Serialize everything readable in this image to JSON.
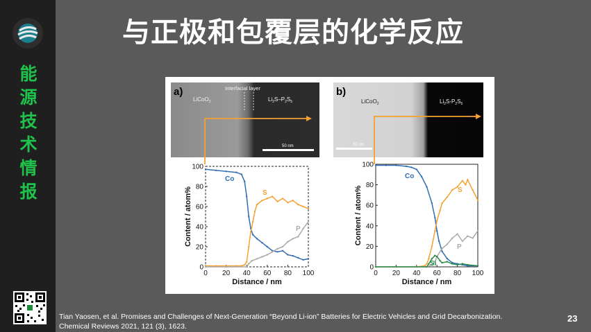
{
  "slide": {
    "title": "与正极和包覆层的化学反应",
    "sidebar_text": [
      "能",
      "源",
      "技",
      "术",
      "情",
      "报"
    ],
    "citation_line1": "Tian Yaosen, et al. Promises and Challenges of Next-Generation “Beyond Li-ion” Batteries for Electric Vehicles and Grid Decarbonization.",
    "citation_line2": "Chemical Reviews 2021, 121 (3), 1623.",
    "page_number": "23"
  },
  "colors": {
    "sidebar_text": "#1fc24a",
    "co": "#2f6db5",
    "s": "#f5a031",
    "p": "#a9a9a9",
    "si": "#2a8a4a",
    "arrow": "#f5a031"
  },
  "panels": [
    {
      "label": "a)",
      "left_phase": "LiCoO",
      "left_sub": "2",
      "right_phase_parts": [
        "Li",
        "2",
        "S–P",
        "2",
        "S",
        "5"
      ],
      "interfacial": "Interfacial layer",
      "scale": "50 nm"
    },
    {
      "label": "b)",
      "left_phase": "LiCoO",
      "left_sub": "2",
      "right_phase_parts": [
        "Li",
        "2",
        "S-P",
        "2",
        "S",
        "5"
      ],
      "scale": "50 nm"
    }
  ],
  "chart_data": [
    {
      "type": "line",
      "xlabel": "Distance / nm",
      "ylabel": "Content / atom%",
      "xlim": [
        0,
        100
      ],
      "ylim": [
        0,
        100
      ],
      "x_ticks": [
        0,
        20,
        40,
        60,
        80,
        100
      ],
      "y_ticks": [
        0,
        20,
        40,
        60,
        80,
        100
      ],
      "series": [
        {
          "name": "Co",
          "values": [
            [
              0,
              97
            ],
            [
              10,
              96
            ],
            [
              20,
              95
            ],
            [
              30,
              94
            ],
            [
              35,
              92
            ],
            [
              38,
              85
            ],
            [
              40,
              70
            ],
            [
              42,
              50
            ],
            [
              44,
              38
            ],
            [
              46,
              32
            ],
            [
              50,
              28
            ],
            [
              55,
              24
            ],
            [
              60,
              20
            ],
            [
              65,
              16
            ],
            [
              70,
              15
            ],
            [
              75,
              16
            ],
            [
              80,
              12
            ],
            [
              85,
              11
            ],
            [
              90,
              9
            ],
            [
              95,
              7
            ],
            [
              100,
              8
            ]
          ]
        },
        {
          "name": "S",
          "values": [
            [
              0,
              1
            ],
            [
              10,
              1
            ],
            [
              20,
              1
            ],
            [
              30,
              1
            ],
            [
              35,
              1
            ],
            [
              38,
              2
            ],
            [
              40,
              5
            ],
            [
              42,
              20
            ],
            [
              44,
              35
            ],
            [
              46,
              45
            ],
            [
              48,
              55
            ],
            [
              50,
              62
            ],
            [
              55,
              66
            ],
            [
              60,
              68
            ],
            [
              65,
              70
            ],
            [
              70,
              65
            ],
            [
              75,
              68
            ],
            [
              80,
              64
            ],
            [
              85,
              66
            ],
            [
              90,
              62
            ],
            [
              95,
              60
            ],
            [
              100,
              58
            ]
          ]
        },
        {
          "name": "P",
          "values": [
            [
              0,
              0
            ],
            [
              20,
              0
            ],
            [
              40,
              0
            ],
            [
              42,
              3
            ],
            [
              45,
              6
            ],
            [
              50,
              8
            ],
            [
              55,
              10
            ],
            [
              60,
              12
            ],
            [
              65,
              15
            ],
            [
              70,
              18
            ],
            [
              75,
              20
            ],
            [
              80,
              25
            ],
            [
              85,
              28
            ],
            [
              90,
              30
            ],
            [
              95,
              38
            ],
            [
              100,
              45
            ]
          ]
        }
      ]
    },
    {
      "type": "line",
      "xlabel": "Distance / nm",
      "ylabel": "Content / atom%",
      "xlim": [
        0,
        100
      ],
      "ylim": [
        0,
        100
      ],
      "x_ticks": [
        0,
        20,
        40,
        60,
        80,
        100
      ],
      "y_ticks": [
        0,
        20,
        40,
        60,
        80,
        100
      ],
      "series": [
        {
          "name": "Co",
          "values": [
            [
              0,
              99
            ],
            [
              10,
              99
            ],
            [
              20,
              99
            ],
            [
              30,
              98
            ],
            [
              35,
              97
            ],
            [
              40,
              95
            ],
            [
              45,
              88
            ],
            [
              50,
              78
            ],
            [
              55,
              62
            ],
            [
              58,
              48
            ],
            [
              60,
              35
            ],
            [
              62,
              25
            ],
            [
              65,
              15
            ],
            [
              70,
              8
            ],
            [
              75,
              4
            ],
            [
              80,
              3
            ],
            [
              85,
              2
            ],
            [
              90,
              1
            ],
            [
              100,
              1
            ]
          ]
        },
        {
          "name": "S",
          "values": [
            [
              0,
              0
            ],
            [
              40,
              0
            ],
            [
              48,
              1
            ],
            [
              50,
              3
            ],
            [
              52,
              8
            ],
            [
              55,
              20
            ],
            [
              58,
              35
            ],
            [
              60,
              45
            ],
            [
              63,
              55
            ],
            [
              65,
              62
            ],
            [
              70,
              68
            ],
            [
              75,
              75
            ],
            [
              80,
              78
            ],
            [
              85,
              84
            ],
            [
              88,
              80
            ],
            [
              90,
              85
            ],
            [
              95,
              75
            ],
            [
              100,
              65
            ]
          ]
        },
        {
          "name": "P",
          "values": [
            [
              0,
              0
            ],
            [
              50,
              0
            ],
            [
              55,
              2
            ],
            [
              58,
              5
            ],
            [
              60,
              10
            ],
            [
              65,
              18
            ],
            [
              70,
              22
            ],
            [
              75,
              28
            ],
            [
              80,
              32
            ],
            [
              85,
              25
            ],
            [
              90,
              30
            ],
            [
              95,
              28
            ],
            [
              100,
              35
            ]
          ]
        },
        {
          "name": "Si",
          "values": [
            [
              0,
              0
            ],
            [
              50,
              0
            ],
            [
              52,
              3
            ],
            [
              55,
              8
            ],
            [
              58,
              11
            ],
            [
              60,
              10
            ],
            [
              63,
              6
            ],
            [
              65,
              4
            ],
            [
              70,
              5
            ],
            [
              75,
              3
            ],
            [
              80,
              2
            ],
            [
              85,
              3
            ],
            [
              90,
              2
            ],
            [
              100,
              1
            ]
          ]
        }
      ]
    }
  ]
}
